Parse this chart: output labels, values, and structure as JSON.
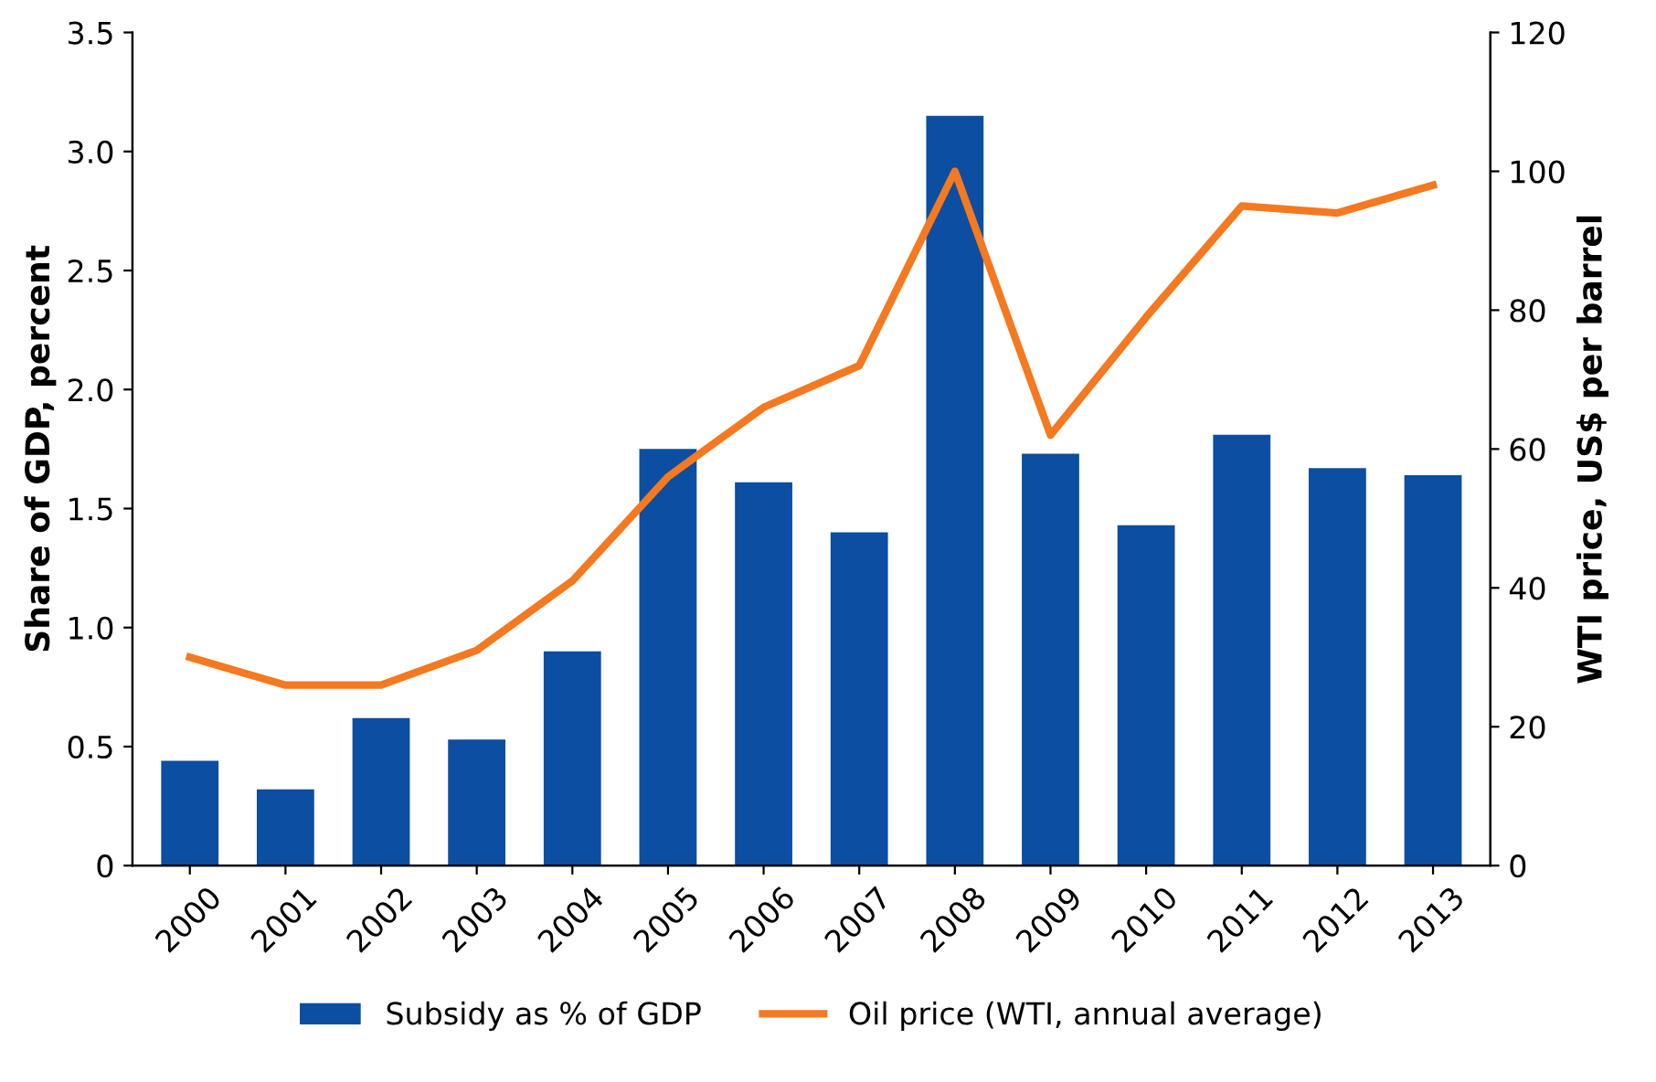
{
  "chart_data": {
    "type": "bar",
    "categories": [
      "2000",
      "2001",
      "2002",
      "2003",
      "2004",
      "2005",
      "2006",
      "2007",
      "2008",
      "2009",
      "2010",
      "2011",
      "2012",
      "2013"
    ],
    "ylabel": "Share of GDP, percent",
    "y2label": "WTI price, US$ per barrel",
    "series": [
      {
        "name": "Subsidy as % of GDP",
        "color": "#0b4ea2",
        "values": [
          0.44,
          0.32,
          0.62,
          0.53,
          0.9,
          1.75,
          1.61,
          1.4,
          3.15,
          1.73,
          1.43,
          1.81,
          1.67,
          1.64
        ]
      },
      {
        "name": "Oil price (WTI, annual average)",
        "type": "line",
        "axis": "y2",
        "color": "#f47920",
        "values": [
          30,
          26,
          26,
          31,
          41,
          56,
          66,
          72,
          100,
          62,
          79,
          95,
          94,
          98
        ]
      }
    ],
    "ylim": [
      0,
      3.5
    ],
    "yticks": [
      0,
      0.5,
      {
        "value": 1,
        "label": "1.0"
      },
      1.5,
      {
        "value": 2,
        "label": "2.0"
      },
      2.5,
      {
        "value": 3,
        "label": "3.0"
      },
      3.5
    ],
    "y2lim": [
      0,
      120
    ],
    "y2ticks": [
      0,
      20,
      40,
      60,
      80,
      100,
      120
    ],
    "grid": false,
    "legend": "bottom",
    "marker": "none",
    "line_style": "solid"
  }
}
